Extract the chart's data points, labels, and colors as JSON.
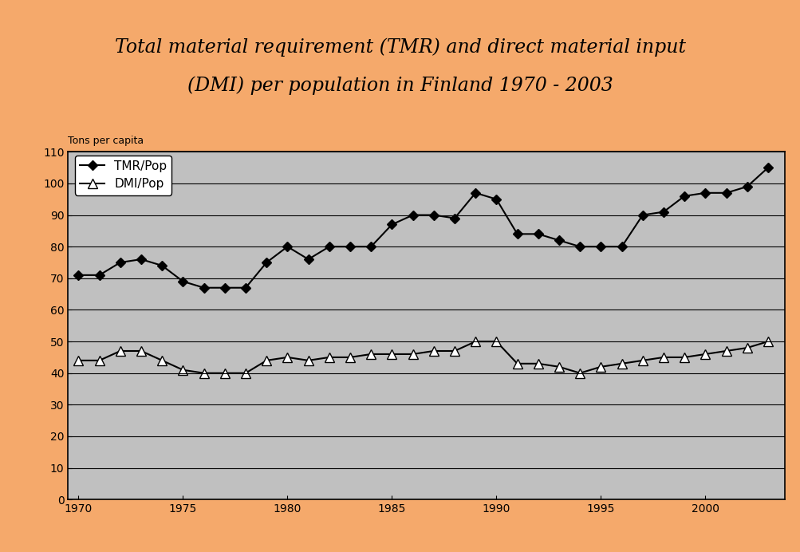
{
  "title_line1": "Total material requirement (TMR) and direct material input",
  "title_line2": "(DMI) per population in Finland 1970 - 2003",
  "ylabel": "Tons per capita",
  "years": [
    1970,
    1971,
    1972,
    1973,
    1974,
    1975,
    1976,
    1977,
    1978,
    1979,
    1980,
    1981,
    1982,
    1983,
    1984,
    1985,
    1986,
    1987,
    1988,
    1989,
    1990,
    1991,
    1992,
    1993,
    1994,
    1995,
    1996,
    1997,
    1998,
    1999,
    2000,
    2001,
    2002,
    2003
  ],
  "tmr": [
    71,
    71,
    75,
    76,
    74,
    69,
    67,
    67,
    67,
    75,
    80,
    76,
    80,
    80,
    80,
    87,
    90,
    90,
    89,
    97,
    95,
    84,
    84,
    82,
    80,
    80,
    80,
    90,
    91,
    96,
    97,
    97,
    99,
    105
  ],
  "dmi": [
    44,
    44,
    47,
    47,
    44,
    41,
    40,
    40,
    40,
    44,
    45,
    44,
    45,
    45,
    46,
    46,
    46,
    47,
    47,
    50,
    50,
    43,
    43,
    42,
    40,
    42,
    43,
    44,
    45,
    45,
    46,
    47,
    48,
    50
  ],
  "ylim": [
    0,
    110
  ],
  "yticks": [
    0,
    10,
    20,
    30,
    40,
    50,
    60,
    70,
    80,
    90,
    100,
    110
  ],
  "xlim": [
    1969.5,
    2003.8
  ],
  "xticks": [
    1970,
    1975,
    1980,
    1985,
    1990,
    1995,
    2000
  ],
  "plot_bg_color": "#C0C0C0",
  "outer_bg_color": "#F5A96B",
  "tmr_color": "#000000",
  "dmi_color": "#000000",
  "title_fontsize": 17,
  "label_fontsize": 9,
  "tick_fontsize": 10,
  "legend_fontsize": 11
}
